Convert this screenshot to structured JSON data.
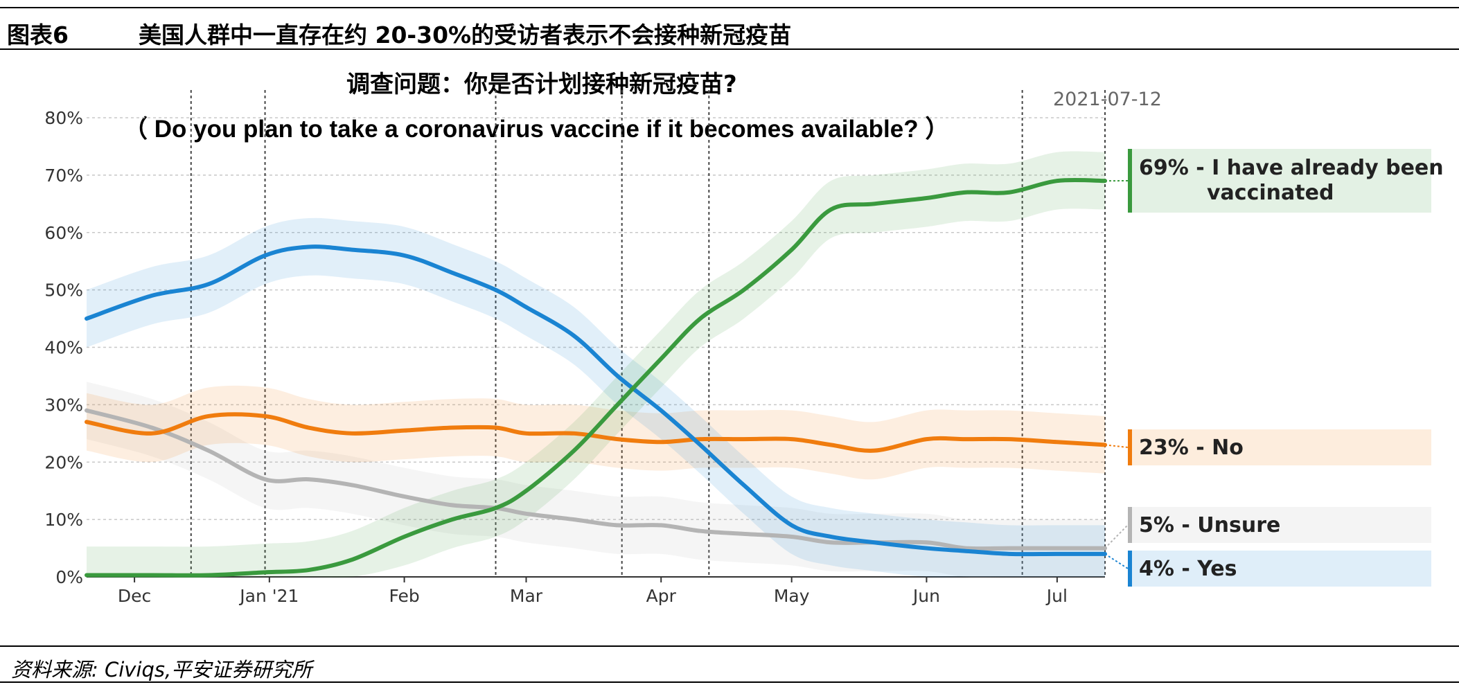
{
  "header": {
    "label": "图表6",
    "text": "美国人群中一直存在约 20-30%的受访者表示不会接种新冠疫苗"
  },
  "question": {
    "zh": "调查问题：你是否计划接种新冠疫苗?",
    "en": "（ Do you plan to take a coronavirus vaccine if it becomes available? ）"
  },
  "date_label": "2021-07-12",
  "source": "资料来源: Civiqs,平安证券研究所",
  "colors": {
    "vaccinated": "#3a9a3e",
    "no": "#f07c0e",
    "unsure": "#b4b4b4",
    "yes": "#1a84d2"
  },
  "chart_data": {
    "type": "line",
    "title": "",
    "xlabel": "",
    "ylabel": "",
    "ylim": [
      0,
      80
    ],
    "yticks": [
      "0%",
      "10%",
      "20%",
      "30%",
      "40%",
      "50%",
      "60%",
      "70%",
      "80%"
    ],
    "grid": true,
    "legend_position": "right",
    "x": [
      "2020-11-20",
      "2020-12-05",
      "2020-12-18",
      "2020-12-31",
      "2021-01-10",
      "2021-01-20",
      "2021-02-01",
      "2021-02-12",
      "2021-02-22",
      "2021-03-01",
      "2021-03-12",
      "2021-03-22",
      "2021-04-01",
      "2021-04-10",
      "2021-04-20",
      "2021-05-01",
      "2021-05-10",
      "2021-05-20",
      "2021-06-01",
      "2021-06-10",
      "2021-06-20",
      "2021-07-01",
      "2021-07-12"
    ],
    "xtick_labels": [
      {
        "date": "2020-12-01",
        "label": "Dec"
      },
      {
        "date": "2021-01-01",
        "label": "Jan '21"
      },
      {
        "date": "2021-02-01",
        "label": "Feb"
      },
      {
        "date": "2021-03-01",
        "label": "Mar"
      },
      {
        "date": "2021-04-01",
        "label": "Apr"
      },
      {
        "date": "2021-05-01",
        "label": "May"
      },
      {
        "date": "2021-06-01",
        "label": "Jun"
      },
      {
        "date": "2021-07-01",
        "label": "Jul"
      }
    ],
    "vertical_markers": [
      "2020-12-14",
      "2020-12-31",
      "2021-02-22",
      "2021-03-23",
      "2021-04-12",
      "2021-06-23",
      "2021-07-12"
    ],
    "series": [
      {
        "name": "Yes",
        "color_key": "yes",
        "legend": "4% - Yes",
        "final": 4,
        "values": [
          45,
          49,
          51,
          56,
          57.5,
          57,
          56,
          53,
          50,
          47,
          42,
          35,
          29,
          23,
          16,
          9,
          7,
          6,
          5,
          4.5,
          4,
          4,
          4
        ]
      },
      {
        "name": "No",
        "color_key": "no",
        "legend": "23% - No",
        "final": 23,
        "values": [
          27,
          25,
          28,
          28,
          26,
          25,
          25.5,
          26,
          26,
          25,
          25,
          24,
          23.5,
          24,
          24,
          24,
          23,
          22,
          24,
          24,
          24,
          23.5,
          23
        ]
      },
      {
        "name": "Unsure",
        "color_key": "unsure",
        "legend": "5% - Unsure",
        "final": 5,
        "values": [
          29,
          26,
          22,
          17,
          17,
          16,
          14,
          12.5,
          12,
          11,
          10,
          9,
          9,
          8,
          7.5,
          7,
          6,
          6,
          6,
          5,
          5,
          5,
          5
        ]
      },
      {
        "name": "I have already been vaccinated",
        "color_key": "vaccinated",
        "legend": [
          "69% - I have already been",
          "vaccinated"
        ],
        "final": 69,
        "values": [
          0.3,
          0.3,
          0.3,
          0.8,
          1.2,
          3,
          7,
          10,
          12,
          15,
          22,
          30,
          38,
          45,
          50,
          57,
          64,
          65,
          66,
          67,
          67,
          69,
          69
        ]
      }
    ]
  }
}
